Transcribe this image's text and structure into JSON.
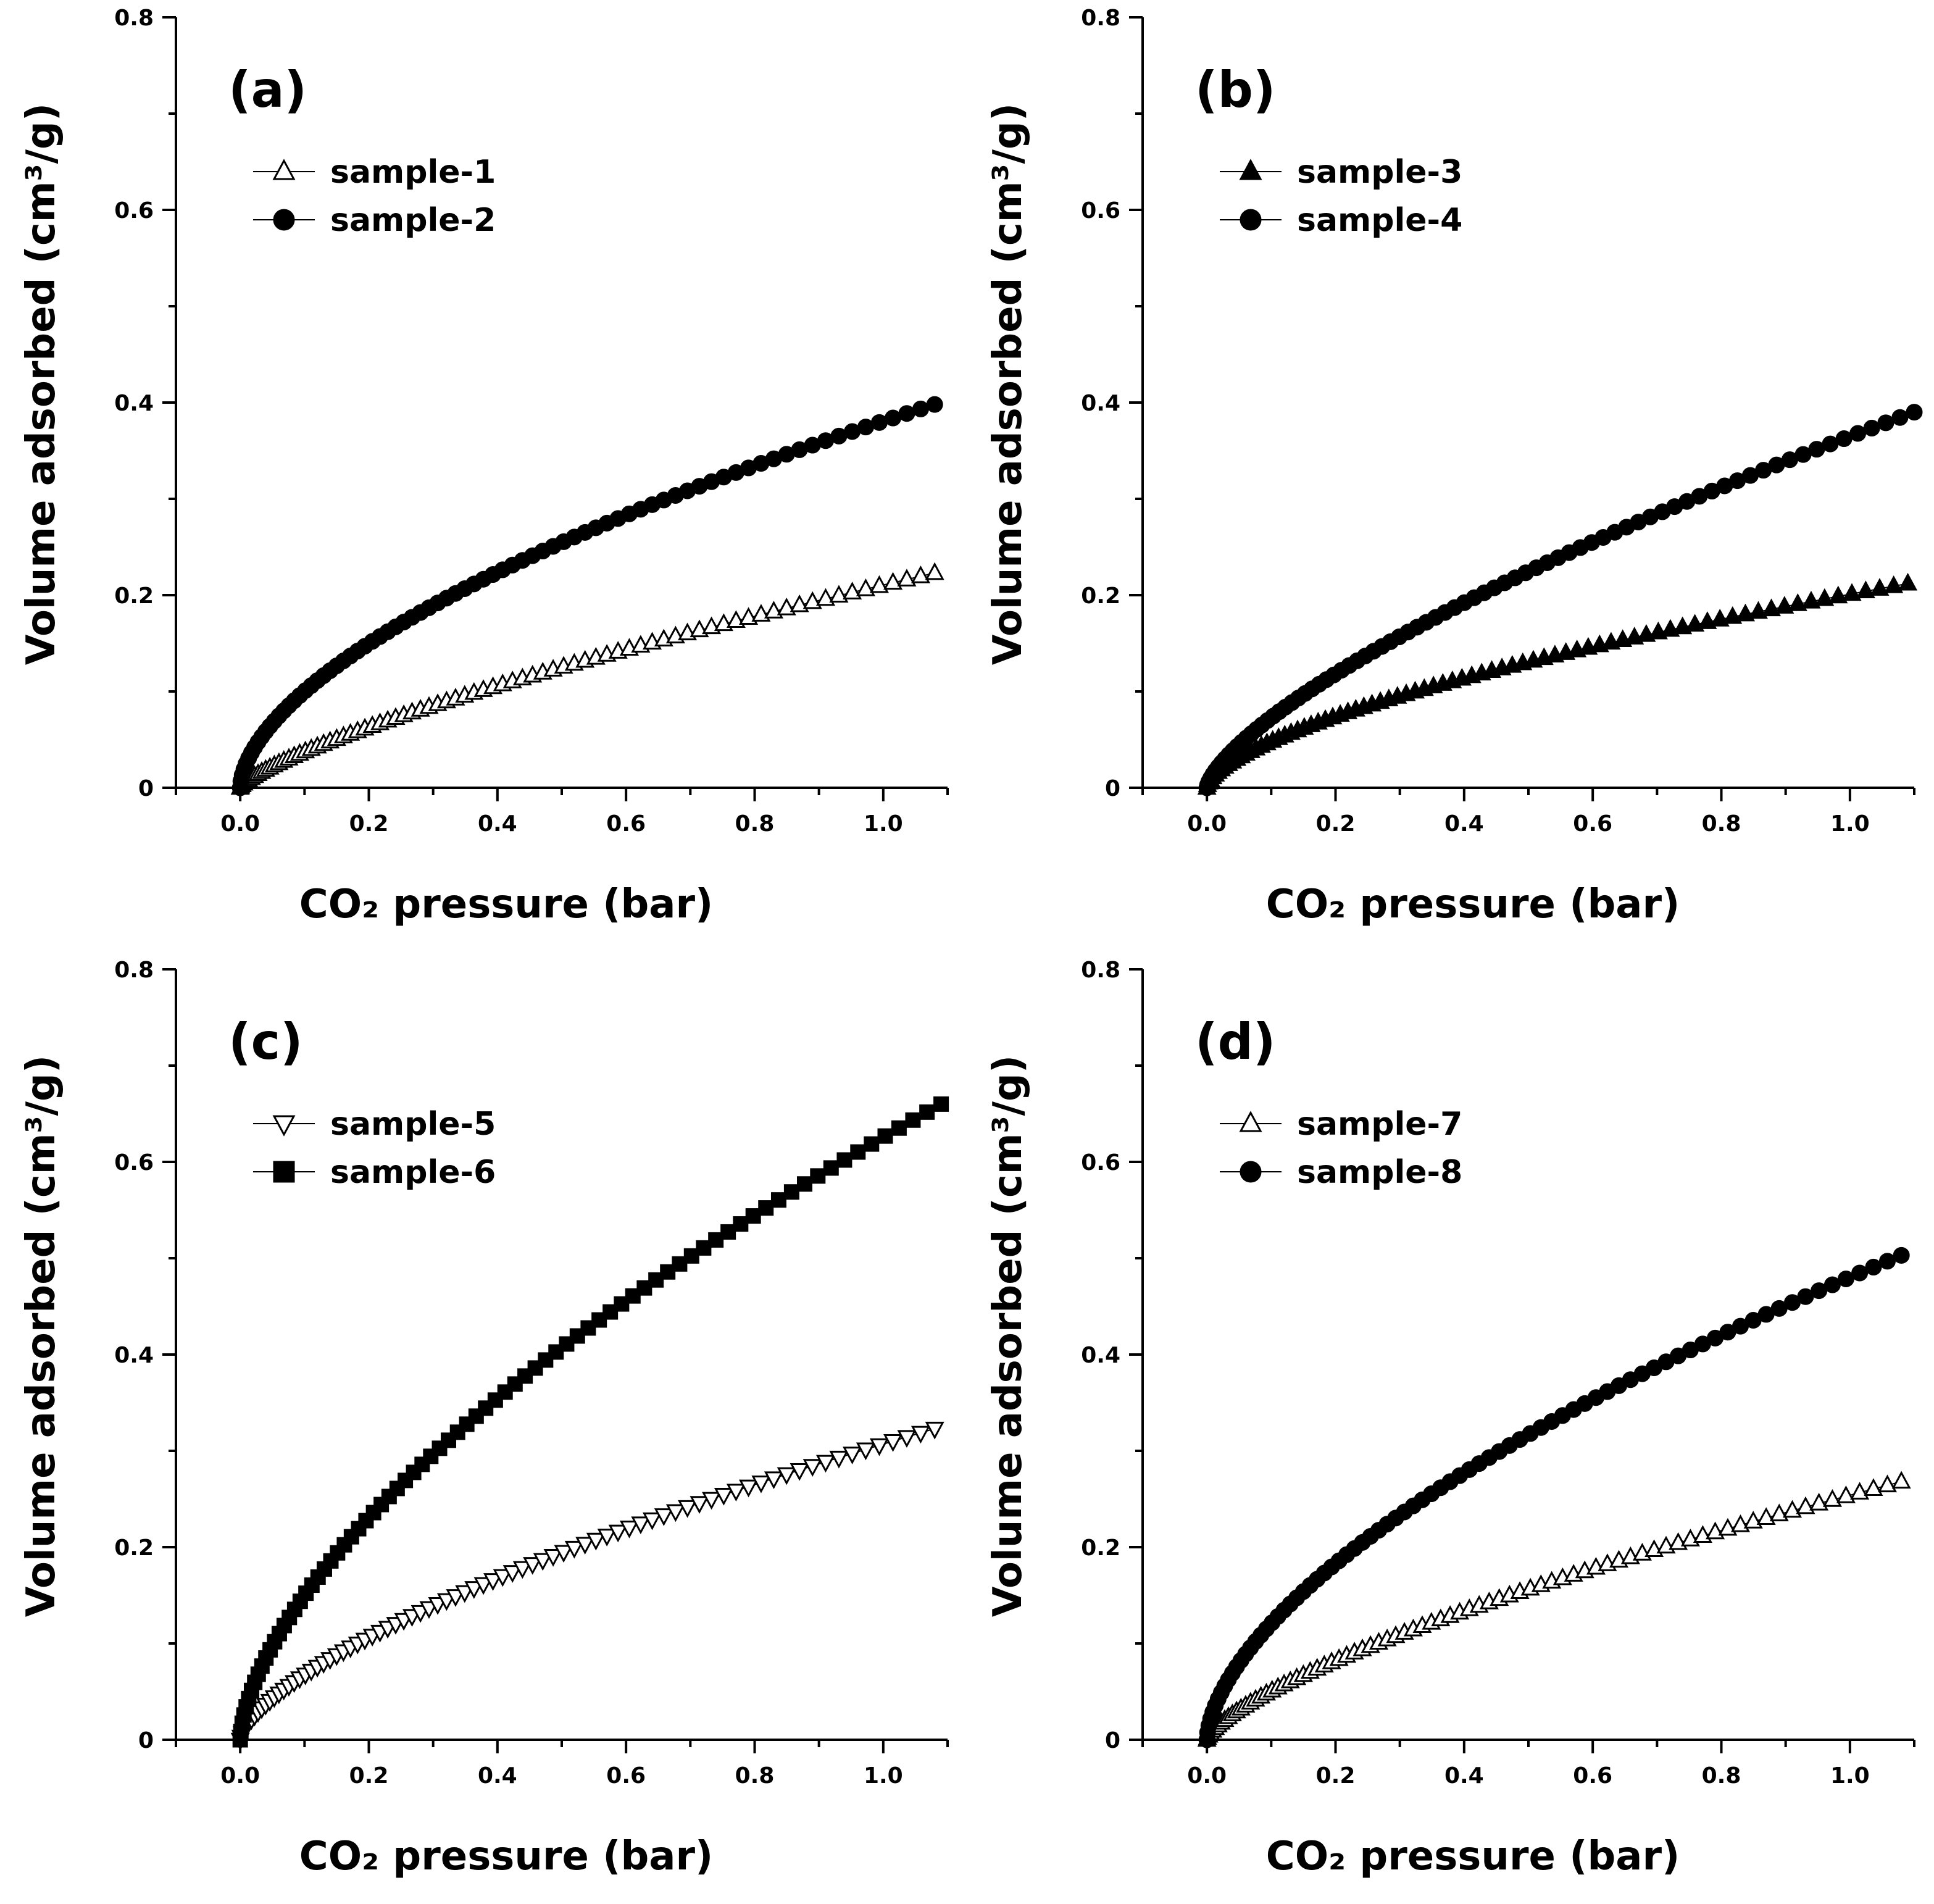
{
  "chart_data": [
    {
      "type": "scatter",
      "panel_label": "(a)",
      "xlabel": "CO₂ pressure (bar)",
      "ylabel": "Volume adsorbed (cm³/g)",
      "xlim": [
        -0.1,
        1.1
      ],
      "ylim": [
        0,
        0.8
      ],
      "xticks": [
        "0.0",
        "0.2",
        "0.4",
        "0.6",
        "0.8",
        "1.0"
      ],
      "yticks": [
        "0",
        "0.2",
        "0.4",
        "0.6",
        "0.8"
      ],
      "legend_position": "top-left",
      "series": [
        {
          "name": "sample-1",
          "marker": "triangle-up-open",
          "x_max": 1.08,
          "y_max": 0.223,
          "exponent": 0.75
        },
        {
          "name": "sample-2",
          "marker": "circle-filled",
          "x_max": 1.08,
          "y_max": 0.398,
          "exponent": 0.58
        }
      ]
    },
    {
      "type": "scatter",
      "panel_label": "(b)",
      "xlabel": "CO₂ pressure (bar)",
      "ylabel": "Volume adsorbed (cm³/g)",
      "xlim": [
        -0.1,
        1.1
      ],
      "ylim": [
        0,
        0.8
      ],
      "xticks": [
        "0.0",
        "0.2",
        "0.4",
        "0.6",
        "0.8",
        "1.0"
      ],
      "yticks": [
        "0",
        "0.2",
        "0.4",
        "0.6",
        "0.8"
      ],
      "legend_position": "top-left",
      "series": [
        {
          "name": "sample-3",
          "marker": "triangle-up-filled",
          "x_max": 1.09,
          "y_max": 0.212,
          "exponent": 0.62
        },
        {
          "name": "sample-4",
          "marker": "circle-filled",
          "x_max": 1.1,
          "y_max": 0.39,
          "exponent": 0.7
        }
      ]
    },
    {
      "type": "scatter",
      "panel_label": "(c)",
      "xlabel": "CO₂ pressure (bar)",
      "ylabel": "Volume adsorbed (cm³/g)",
      "xlim": [
        -0.1,
        1.1
      ],
      "ylim": [
        0,
        0.8
      ],
      "xticks": [
        "0.0",
        "0.2",
        "0.4",
        "0.6",
        "0.8",
        "1.0"
      ],
      "yticks": [
        "0",
        "0.2",
        "0.4",
        "0.6",
        "0.8"
      ],
      "legend_position": "top-left",
      "series": [
        {
          "name": "sample-5",
          "marker": "triangle-down-open",
          "x_max": 1.08,
          "y_max": 0.323,
          "exponent": 0.66
        },
        {
          "name": "sample-6",
          "marker": "square-filled",
          "x_max": 1.09,
          "y_max": 0.66,
          "exponent": 0.62
        }
      ]
    },
    {
      "type": "scatter",
      "panel_label": "(d)",
      "xlabel": "CO₂ pressure (bar)",
      "ylabel": "Volume adsorbed (cm³/g)",
      "xlim": [
        -0.1,
        1.1
      ],
      "ylim": [
        0,
        0.8
      ],
      "xticks": [
        "0.0",
        "0.2",
        "0.4",
        "0.6",
        "0.8",
        "1.0"
      ],
      "yticks": [
        "0",
        "0.2",
        "0.4",
        "0.6",
        "0.8"
      ],
      "legend_position": "top-left",
      "series": [
        {
          "name": "sample-7",
          "marker": "triangle-up-open",
          "x_max": 1.08,
          "y_max": 0.268,
          "exponent": 0.7
        },
        {
          "name": "sample-8",
          "marker": "circle-filled",
          "x_max": 1.08,
          "y_max": 0.503,
          "exponent": 0.6
        }
      ]
    }
  ]
}
